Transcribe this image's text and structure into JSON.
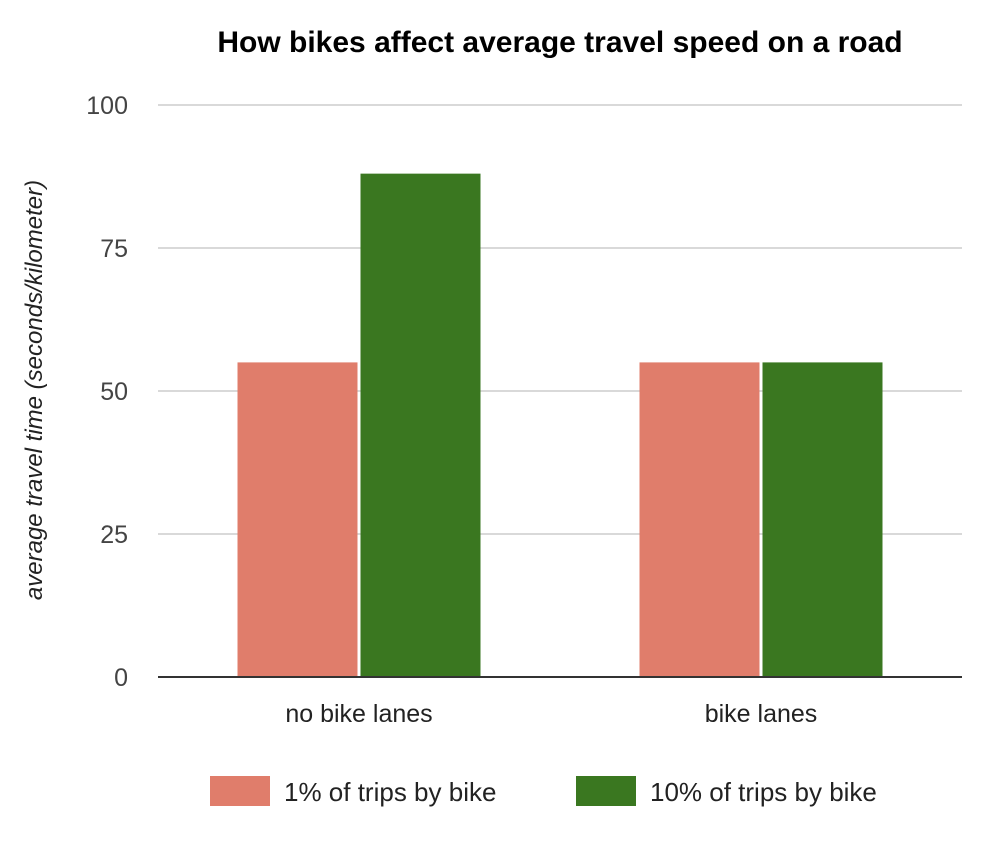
{
  "chart_data": {
    "type": "bar",
    "title": "How bikes affect average travel speed on a road",
    "xlabel": "",
    "ylabel": "average travel time (seconds/kilometer)",
    "categories": [
      "no bike lanes",
      "bike lanes"
    ],
    "series": [
      {
        "name": "1% of trips by bike",
        "color": "#e07d6b",
        "values": [
          55,
          55
        ]
      },
      {
        "name": "10% of trips by bike",
        "color": "#3a7720",
        "values": [
          88,
          55
        ]
      }
    ],
    "ylim": [
      0,
      100
    ],
    "yticks": [
      "0",
      "25",
      "50",
      "75",
      "100"
    ],
    "grid": true,
    "legend_position": "bottom"
  }
}
